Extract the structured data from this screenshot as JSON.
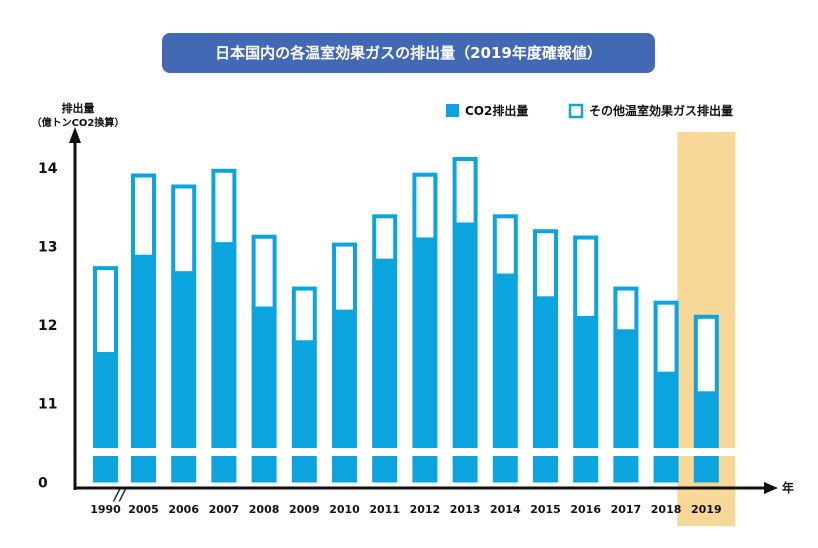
{
  "chart_data": {
    "type": "bar",
    "stacked": true,
    "title": "日本国内の各温室効果ガスの排出量（2019年度確報値）",
    "ylabel_line1": "排出量",
    "ylabel_line2": "（億トンCO2換算）",
    "xlabel": "年",
    "y_ticks": [
      "0",
      "11",
      "12",
      "13",
      "14"
    ],
    "axis_break": "//",
    "categories": [
      "1990",
      "2005",
      "2006",
      "2007",
      "2008",
      "2009",
      "2010",
      "2011",
      "2012",
      "2013",
      "2014",
      "2015",
      "2016",
      "2017",
      "2018",
      "2019"
    ],
    "series": [
      {
        "name": "CO2排出量",
        "values": [
          11.63,
          12.87,
          12.66,
          13.03,
          12.21,
          11.78,
          12.17,
          12.82,
          13.09,
          13.28,
          12.63,
          12.34,
          12.09,
          11.92,
          11.38,
          11.13
        ]
      },
      {
        "name": "その他温室効果ガス排出量",
        "values": [
          1.12,
          1.06,
          1.13,
          0.96,
          0.94,
          0.71,
          0.88,
          0.59,
          0.85,
          0.86,
          0.78,
          0.88,
          1.05,
          0.57,
          0.93,
          1.0
        ]
      }
    ],
    "highlight_category": "2019",
    "colors": {
      "bar": "#0ba4de",
      "highlight_band": "#f8d898",
      "title_bg": "#4369b4",
      "axis": "#111111"
    }
  }
}
